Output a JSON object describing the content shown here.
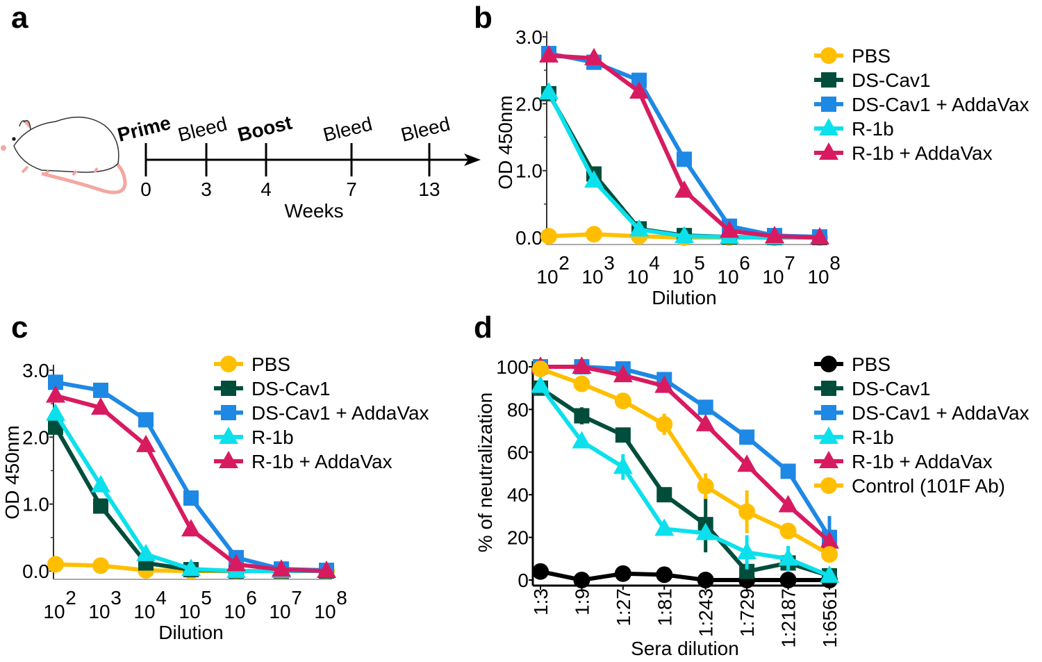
{
  "panels": {
    "a": "a",
    "b": "b",
    "c": "c",
    "d": "d"
  },
  "timeline": {
    "axis_label": "Weeks",
    "events": [
      {
        "week": "0",
        "label": "Prime",
        "bold": true
      },
      {
        "week": "3",
        "label": "Bleed",
        "bold": false
      },
      {
        "week": "4",
        "label": "Boost",
        "bold": true
      },
      {
        "week": "7",
        "label": "Bleed",
        "bold": false
      },
      {
        "week": "13",
        "label": "Bleed",
        "bold": false
      }
    ]
  },
  "chart_data": [
    {
      "id": "b",
      "type": "line",
      "xlabel": "Dilution",
      "ylabel": "OD 450nm",
      "xscale": "log",
      "x": [
        100,
        1000,
        10000,
        100000,
        1000000,
        10000000,
        100000000
      ],
      "xtick_base": "10",
      "xtick_exponents": [
        "2",
        "3",
        "4",
        "5",
        "6",
        "7",
        "8"
      ],
      "ylim": [
        0,
        3
      ],
      "yticks": [
        "0.0",
        "1.0",
        "2.0",
        "3.0"
      ],
      "ytick_values": [
        0,
        1,
        2,
        3
      ],
      "legend": "right",
      "grid": false,
      "series": [
        {
          "name": "PBS",
          "color": "#FFBF00",
          "marker": "circle",
          "values": [
            0.02,
            0.05,
            0.02,
            0.0,
            0.0,
            0.0,
            0.0
          ]
        },
        {
          "name": "DS-Cav1",
          "color": "#004D3B",
          "marker": "square",
          "values": [
            2.15,
            0.95,
            0.13,
            0.03,
            0.01,
            0.0,
            0.0
          ]
        },
        {
          "name": "DS-Cav1 + AddaVax",
          "color": "#1E88E5",
          "marker": "square",
          "values": [
            2.75,
            2.62,
            2.35,
            1.17,
            0.17,
            0.03,
            0.01
          ]
        },
        {
          "name": "R-1b",
          "color": "#0CE0EC",
          "marker": "triangle",
          "values": [
            2.17,
            0.85,
            0.12,
            0.02,
            0.01,
            0.0,
            0.0
          ]
        },
        {
          "name": "R-1b + AddaVax",
          "color": "#D81B60",
          "marker": "triangle",
          "values": [
            2.72,
            2.68,
            2.18,
            0.7,
            0.1,
            0.02,
            0.0
          ]
        }
      ]
    },
    {
      "id": "c",
      "type": "line",
      "xlabel": "Dilution",
      "ylabel": "OD 450nm",
      "xscale": "log",
      "x": [
        100,
        1000,
        10000,
        100000,
        1000000,
        10000000,
        100000000
      ],
      "xtick_base": "10",
      "xtick_exponents": [
        "2",
        "3",
        "4",
        "5",
        "6",
        "7",
        "8"
      ],
      "ylim": [
        0,
        3
      ],
      "yticks": [
        "0.0",
        "1.0",
        "2.0",
        "3.0"
      ],
      "ytick_values": [
        0,
        1,
        2,
        3
      ],
      "legend": "top-right",
      "grid": false,
      "series": [
        {
          "name": "PBS",
          "color": "#FFBF00",
          "marker": "circle",
          "values": [
            0.1,
            0.08,
            0.01,
            0.0,
            0.0,
            0.0,
            0.0
          ]
        },
        {
          "name": "DS-Cav1",
          "color": "#004D3B",
          "marker": "square",
          "values": [
            2.15,
            0.97,
            0.12,
            0.02,
            0.0,
            0.0,
            0.0
          ]
        },
        {
          "name": "DS-Cav1 + AddaVax",
          "color": "#1E88E5",
          "marker": "square",
          "values": [
            2.82,
            2.7,
            2.26,
            1.09,
            0.2,
            0.03,
            0.01
          ]
        },
        {
          "name": "R-1b",
          "color": "#0CE0EC",
          "marker": "triangle",
          "values": [
            2.35,
            1.28,
            0.25,
            0.03,
            0.0,
            0.0,
            0.0
          ]
        },
        {
          "name": "R-1b + AddaVax",
          "color": "#D81B60",
          "marker": "triangle",
          "values": [
            2.62,
            2.44,
            1.88,
            0.62,
            0.1,
            0.02,
            0.0
          ]
        }
      ]
    },
    {
      "id": "d",
      "type": "line",
      "xlabel": "Sera dilution",
      "ylabel": "% of neutralization",
      "categories": [
        "1:3",
        "1:9",
        "1:27",
        "1:81",
        "1:243",
        "1:729",
        "1:2187",
        "1:6561"
      ],
      "ylim": [
        0,
        100
      ],
      "yticks": [
        "0",
        "20",
        "40",
        "60",
        "80",
        "100"
      ],
      "ytick_values": [
        0,
        20,
        40,
        60,
        80,
        100
      ],
      "legend": "right",
      "grid": false,
      "series": [
        {
          "name": "PBS",
          "color": "#000000",
          "marker": "circle",
          "values": [
            4,
            0,
            3,
            2.5,
            0,
            0,
            0,
            0
          ],
          "error": [
            3,
            0,
            0,
            0,
            0,
            0,
            0,
            0
          ]
        },
        {
          "name": "DS-Cav1",
          "color": "#004D3B",
          "marker": "square",
          "values": [
            90,
            77,
            68,
            40,
            26,
            4,
            8,
            2
          ],
          "error": [
            0,
            4,
            0,
            0,
            13,
            0,
            0,
            0
          ]
        },
        {
          "name": "DS-Cav1 + AddaVax",
          "color": "#1E88E5",
          "marker": "square",
          "values": [
            100,
            100,
            99,
            94,
            81,
            67,
            51,
            20
          ],
          "error": [
            0,
            0,
            0,
            0,
            0,
            0,
            3,
            10
          ]
        },
        {
          "name": "R-1b",
          "color": "#0CE0EC",
          "marker": "triangle",
          "values": [
            91,
            65,
            53,
            24,
            22,
            13,
            10,
            2
          ],
          "error": [
            0,
            0,
            6,
            2,
            0,
            8,
            6,
            0
          ]
        },
        {
          "name": "R-1b + AddaVax",
          "color": "#D81B60",
          "marker": "triangle",
          "values": [
            100,
            100,
            96,
            91,
            73,
            54,
            35,
            18
          ],
          "error": [
            0,
            0,
            0,
            0,
            2,
            2,
            0,
            0
          ]
        },
        {
          "name": "Control (101F Ab)",
          "color": "#FFBF00",
          "marker": "circle",
          "values": [
            99,
            92,
            84,
            73,
            44,
            32,
            23,
            12
          ],
          "error": [
            0,
            0,
            0,
            5,
            6,
            10,
            0,
            3
          ]
        }
      ]
    }
  ]
}
